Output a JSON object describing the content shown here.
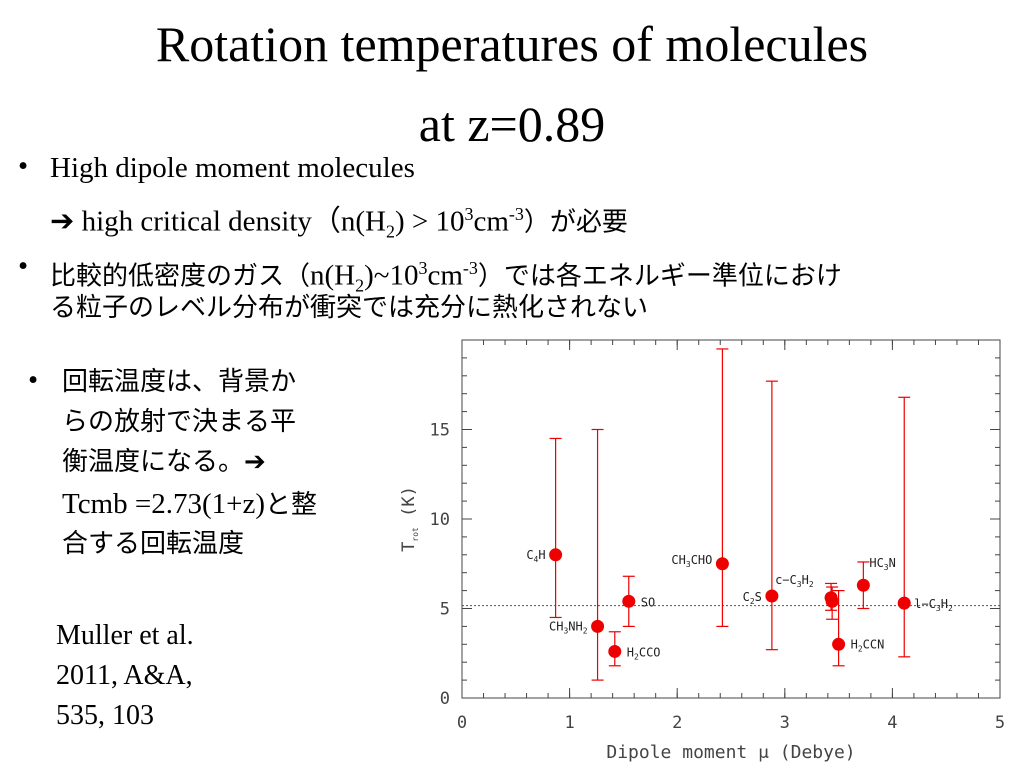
{
  "slide": {
    "title_line1": "Rotation temperatures of molecules",
    "title_line2": "at z=0.89",
    "bullet_char": "•",
    "bullet1": "High dipole moment molecules",
    "arrow": "➔",
    "line2_a": " high critical density（n(H",
    "line2_b": "2",
    "line2_c": ") > 10",
    "line2_d": "3",
    "line2_e": "cm",
    "line2_f": "-3",
    "line2_g": "）が必要",
    "bullet2_a": "比較的低密度のガス（",
    "bullet2_b": "n(H",
    "bullet2_c": "2",
    "bullet2_d": ")~10",
    "bullet2_e": "3",
    "bullet2_f": "cm",
    "bullet2_g": "-3",
    "bullet2_h": "）では各エネルギー準位におけ",
    "bullet2_line2": "る粒子のレベル分布が衝突では充分に熱化されない",
    "bullet3_l1": "回転温度は、背景か",
    "bullet3_l2": "らの放射で決まる平",
    "bullet3_l3": "衡温度になる。➔",
    "bullet3_l4a": "Tcmb =2.73(1+z)",
    "bullet3_l4b": "と整",
    "bullet3_l5": "合する回転温度",
    "ref_l1": "Muller et al.",
    "ref_l2": "2011, A&A,",
    "ref_l3": "535, 103"
  },
  "chart_data": {
    "type": "scatter",
    "xlabel": "Dipole moment μ (Debye)",
    "ylabel_main": "T",
    "ylabel_sub": "rot",
    "ylabel_unit": " (K)",
    "xlim": [
      0,
      5
    ],
    "ylim": [
      0,
      20
    ],
    "xticks": [
      "0",
      "1",
      "2",
      "3",
      "4",
      "5"
    ],
    "yticks": [
      "0",
      "5",
      "10",
      "15"
    ],
    "reference_line_y": 5.16,
    "marker_color": "#ee0000",
    "points": [
      {
        "label_main": "C",
        "label_sub": "4",
        "label_rest": "H",
        "x": 0.87,
        "y": 8.0,
        "err_lo": 4.5,
        "err_hi": 14.5
      },
      {
        "label_main": "CH",
        "label_sub": "3",
        "label_rest": "NH",
        "label_sub2": "2",
        "x": 1.26,
        "y": 4.0,
        "err_lo": 1.0,
        "err_hi": 15.0
      },
      {
        "label_main": "H",
        "label_sub": "2",
        "label_rest": "CCO",
        "x": 1.42,
        "y": 2.6,
        "err_lo": 1.8,
        "err_hi": 3.7
      },
      {
        "label_main": "SO",
        "x": 1.55,
        "y": 5.4,
        "err_lo": 4.0,
        "err_hi": 6.8
      },
      {
        "label_main": "CH",
        "label_sub": "3",
        "label_rest": "CHO",
        "x": 2.42,
        "y": 7.5,
        "err_lo": 4.0,
        "err_hi": 19.5
      },
      {
        "label_main": "C",
        "label_sub": "2",
        "label_rest": "S",
        "x": 2.88,
        "y": 5.7,
        "err_lo": 2.7,
        "err_hi": 17.7
      },
      {
        "label_main": "c−C",
        "label_sub": "3",
        "label_rest": "H",
        "label_sub2": "2",
        "x": 3.43,
        "y": 5.6,
        "err_lo": 4.9,
        "err_hi": 6.4
      },
      {
        "x": 3.44,
        "y": 5.4,
        "err_lo": 4.4,
        "err_hi": 6.2
      },
      {
        "label_main": "H",
        "label_sub": "2",
        "label_rest": "CCN",
        "x": 3.5,
        "y": 3.0,
        "err_lo": 1.8,
        "err_hi": 6.0
      },
      {
        "label_main": "HC",
        "label_sub": "3",
        "label_rest": "N",
        "x": 3.73,
        "y": 6.3,
        "err_lo": 5.0,
        "err_hi": 7.6
      },
      {
        "label_main": "l−C",
        "label_sub": "3",
        "label_rest": "H",
        "label_sub2": "2",
        "x": 4.11,
        "y": 5.3,
        "err_lo": 2.3,
        "err_hi": 16.8
      }
    ]
  }
}
